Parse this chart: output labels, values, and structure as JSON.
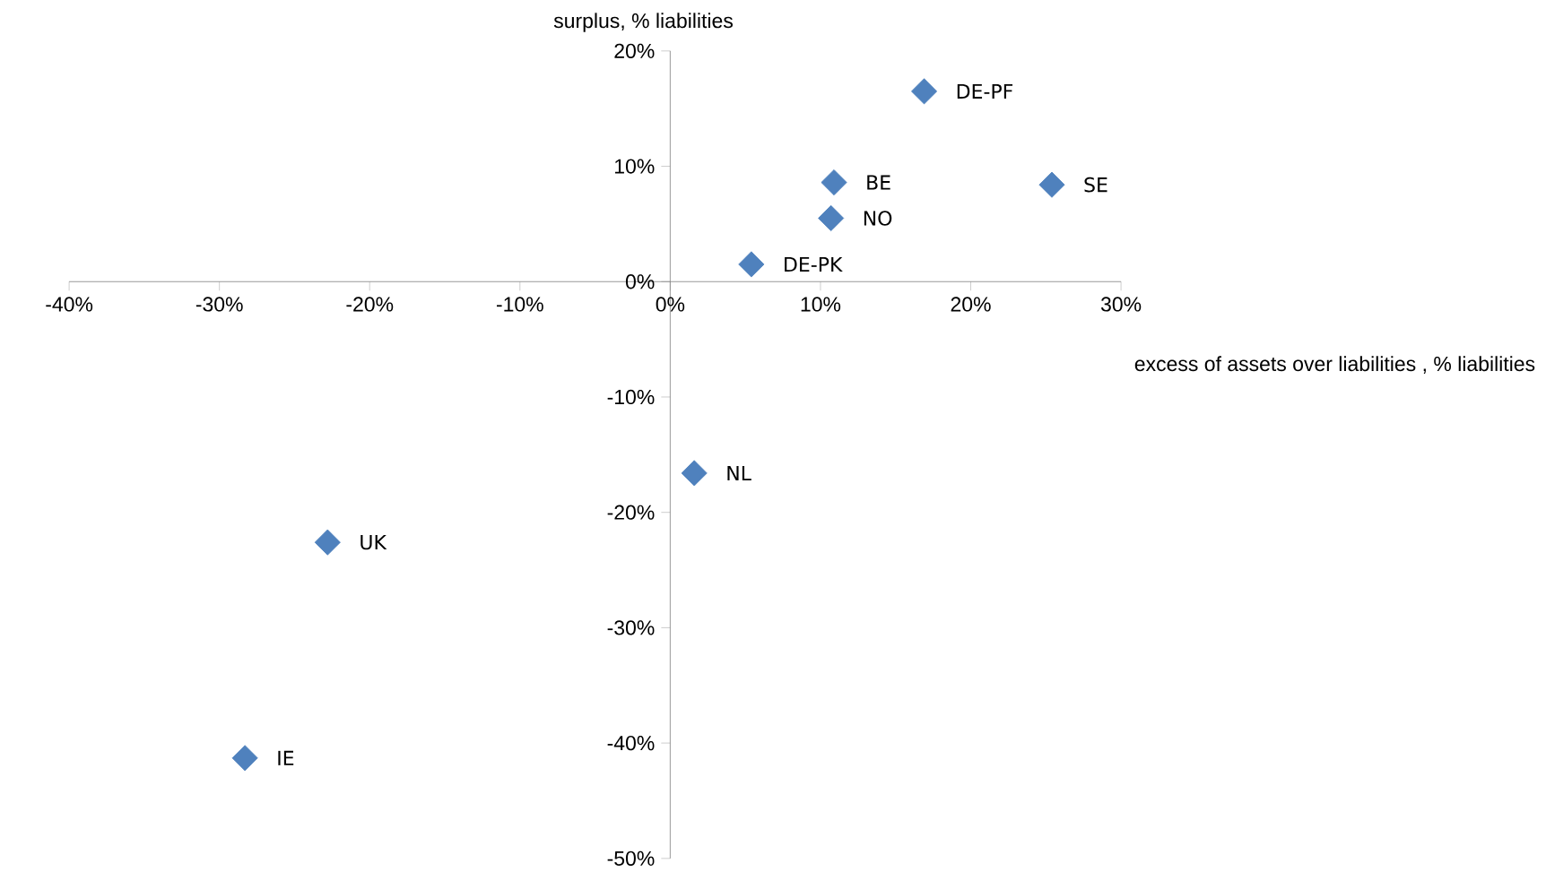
{
  "chart_data": {
    "type": "scatter",
    "xlabel": "excess of assets over liabilities , % liabilities",
    "ylabel": "surplus, % liabilities",
    "x": [
      16.9,
      25.4,
      10.9,
      10.7,
      5.4,
      1.6,
      -22.8,
      -28.3
    ],
    "values": [
      16.5,
      8.4,
      8.6,
      5.5,
      1.5,
      -16.6,
      -22.6,
      -41.3
    ],
    "color": "#4f81bd",
    "marker": "diamond",
    "xlim": [
      -40,
      30
    ],
    "ylim": [
      -50,
      20
    ],
    "xticks": [
      {
        "value": -40,
        "label": "-40%"
      },
      {
        "value": -30,
        "label": "-30%"
      },
      {
        "value": -20,
        "label": "-20%"
      },
      {
        "value": -10,
        "label": "-10%"
      },
      {
        "value": 0,
        "label": "0%"
      },
      {
        "value": 10,
        "label": "10%"
      },
      {
        "value": 20,
        "label": "20%"
      },
      {
        "value": 30,
        "label": "30%"
      }
    ],
    "yticks": [
      {
        "value": -50,
        "label": "-50%"
      },
      {
        "value": -40,
        "label": "-40%"
      },
      {
        "value": -30,
        "label": "-30%"
      },
      {
        "value": -20,
        "label": "-20%"
      },
      {
        "value": -10,
        "label": "-10%"
      },
      {
        "value": 0,
        "label": "0%"
      },
      {
        "value": 10,
        "label": "10%"
      },
      {
        "value": 20,
        "label": "20%"
      }
    ],
    "annotations": [
      {
        "text": "DE-PF",
        "x": 16.9,
        "y": 16.5
      },
      {
        "text": "SE",
        "x": 25.4,
        "y": 8.4
      },
      {
        "text": "BE",
        "x": 10.9,
        "y": 8.6
      },
      {
        "text": "NO",
        "x": 10.7,
        "y": 5.5
      },
      {
        "text": "DE-PK",
        "x": 5.4,
        "y": 1.5
      },
      {
        "text": "NL",
        "x": 1.6,
        "y": -16.6
      },
      {
        "text": "UK",
        "x": -22.8,
        "y": -22.6
      },
      {
        "text": "IE",
        "x": -28.3,
        "y": -41.3
      }
    ]
  }
}
